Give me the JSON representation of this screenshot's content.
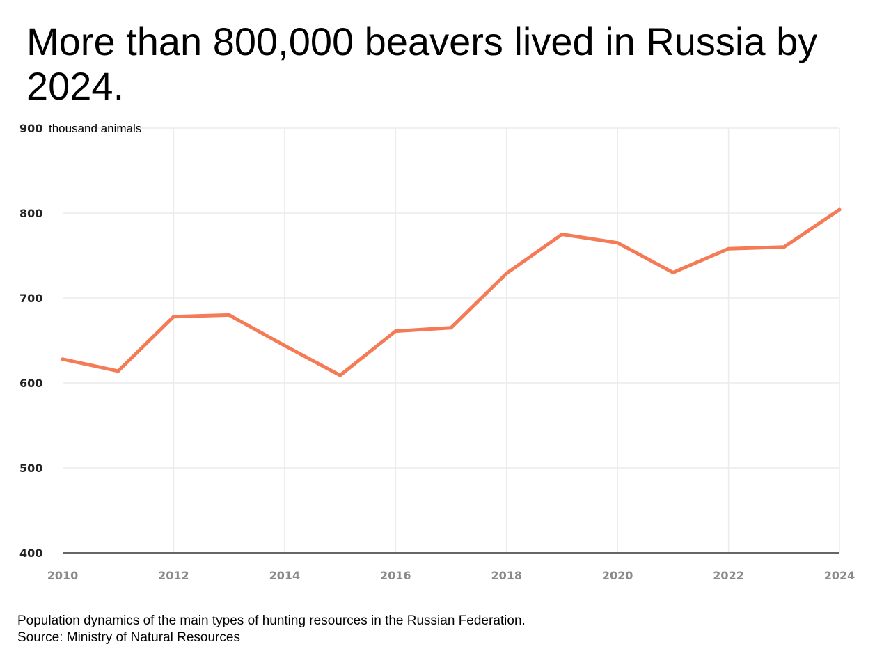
{
  "title": "More than 800,000 beavers lived in Russia by 2024.",
  "footer": {
    "caption": "Population dynamics of the main types of hunting resources in the Russian Federation.",
    "source": "Source: Ministry of Natural Resources"
  },
  "colors": {
    "line": "#f47b56",
    "grid": "#ebebeb",
    "axis": "#666666",
    "y_tick_text": "#222222",
    "x_tick_text": "#8a8a8a"
  },
  "chart_data": {
    "type": "line",
    "title": "More than 800,000 beavers lived in Russia by 2024.",
    "xlabel": "",
    "ylabel": "thousand animals",
    "x": [
      2010,
      2011,
      2012,
      2013,
      2014,
      2015,
      2016,
      2017,
      2018,
      2019,
      2020,
      2021,
      2022,
      2023,
      2024
    ],
    "values": [
      628,
      614,
      678,
      680,
      644,
      609,
      661,
      665,
      729,
      775,
      765,
      730,
      758,
      760,
      804
    ],
    "xlim": [
      2010,
      2024
    ],
    "ylim": [
      400,
      900
    ],
    "x_ticks": [
      "2010",
      "2012",
      "2014",
      "2016",
      "2018",
      "2020",
      "2022",
      "2024"
    ],
    "y_ticks": [
      "400",
      "500",
      "600",
      "700",
      "800",
      "900"
    ],
    "grid": true,
    "legend": "none"
  }
}
